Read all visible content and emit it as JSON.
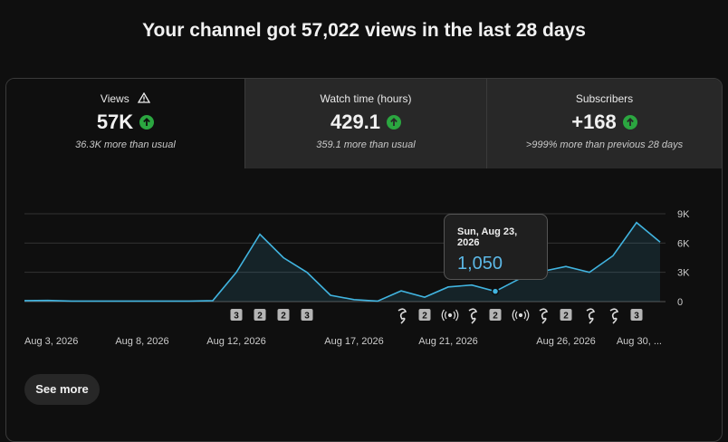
{
  "header": {
    "title": "Your channel got 57,022 views in the last 28 days"
  },
  "tabs": [
    {
      "label": "Views",
      "value": "57K",
      "note": "36.3K more than usual"
    },
    {
      "label": "Watch time (hours)",
      "value": "429.1",
      "note": "359.1 more than usual"
    },
    {
      "label": "Subscribers",
      "value": "+168",
      "note": ">999% more than previous 28 days"
    }
  ],
  "chart_data": {
    "type": "line",
    "categories": [
      "Aug 3, 2026",
      null,
      null,
      null,
      null,
      "Aug 8, 2026",
      null,
      null,
      null,
      "Aug 12, 2026",
      null,
      null,
      null,
      null,
      "Aug 17, 2026",
      null,
      null,
      null,
      "Aug 21, 2026",
      null,
      null,
      null,
      null,
      "Aug 26, 2026",
      null,
      null,
      null,
      "Aug 30, ..."
    ],
    "series": [
      {
        "name": "Views",
        "color": "#41b4e0",
        "values": [
          100,
          120,
          50,
          50,
          50,
          50,
          50,
          50,
          100,
          3000,
          6900,
          4500,
          3000,
          650,
          200,
          50,
          1100,
          450,
          1500,
          1700,
          1050,
          2300,
          3100,
          3600,
          3000,
          4700,
          8100,
          6100
        ]
      }
    ],
    "ylim": [
      0,
      9000
    ],
    "yticks": [
      0,
      {
        "value": 3000,
        "label": "3K"
      },
      {
        "value": 6000,
        "label": "6K"
      },
      {
        "value": 9000,
        "label": "9K"
      }
    ],
    "grid": true,
    "badges": [
      null,
      null,
      null,
      null,
      null,
      null,
      null,
      null,
      null,
      "3",
      "2",
      "2",
      "3",
      null,
      null,
      null,
      null,
      "2",
      null,
      null,
      "2",
      null,
      null,
      "2",
      null,
      null,
      "3",
      null
    ],
    "tooltip": {
      "title": "Sun, Aug 23, 2026",
      "text": "1,050"
    }
  },
  "button": {
    "label": "See more"
  }
}
